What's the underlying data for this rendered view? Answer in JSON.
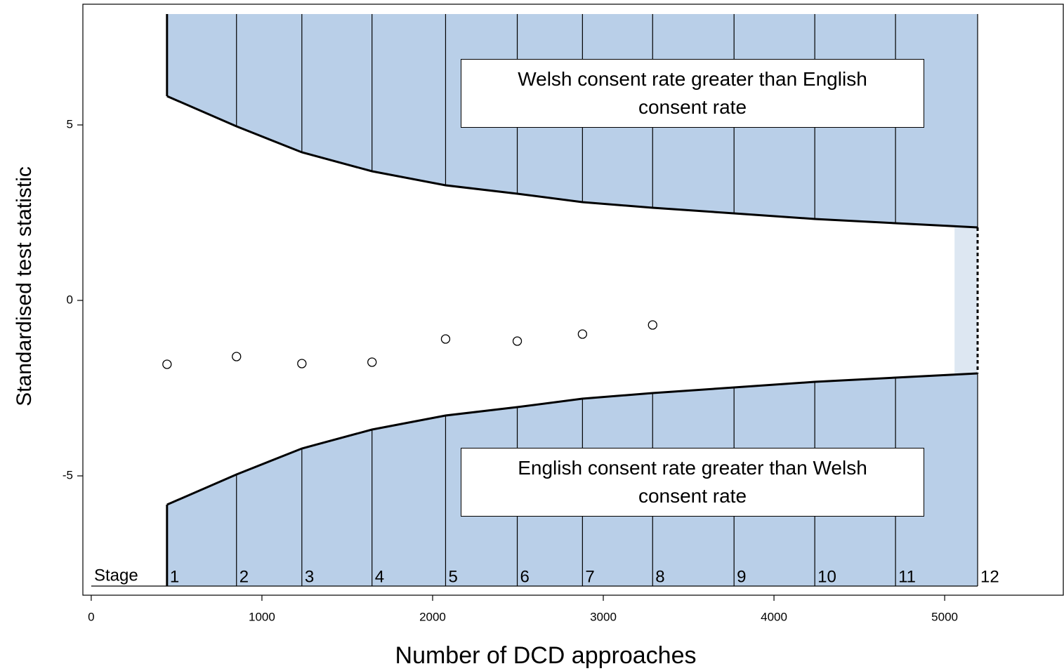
{
  "chart_data": {
    "type": "sequential",
    "x_label": "Number of DCD approaches",
    "y_label": "Standardised test statistic",
    "xlim": [
      -49,
      5695
    ],
    "ylim": [
      -8.4,
      8.44
    ],
    "xticks": [
      0,
      1000,
      2000,
      3000,
      4000,
      5000
    ],
    "yticks": [
      -5,
      0,
      5
    ],
    "stage_label": "Stage",
    "stages": [
      1,
      2,
      3,
      4,
      5,
      6,
      7,
      8,
      9,
      10,
      11,
      12
    ],
    "x": [
      444,
      851,
      1234,
      1645,
      2076,
      2496,
      2878,
      3289,
      3766,
      4239,
      4712,
      5193
    ],
    "series": [
      {
        "color": "#000000",
        "values": [
          5.82,
          4.96,
          4.22,
          3.68,
          3.28,
          3.04,
          2.8,
          2.64,
          2.48,
          2.32,
          2.2,
          2.08
        ]
      },
      {
        "color": "#000000",
        "values": [
          -5.82,
          -4.96,
          -4.22,
          -3.68,
          -3.28,
          -3.04,
          -2.8,
          -2.64,
          -2.48,
          -2.32,
          -2.2,
          -2.08
        ]
      }
    ],
    "fill_color": "#b9cfe8",
    "fill_ylim": [
      -8.14,
      8.16
    ],
    "shaded_x": [
      5058,
      5193
    ],
    "shaded_color": "#dde7f2",
    "points": {
      "x": [
        444,
        851,
        1234,
        1645,
        2076,
        2496,
        2878,
        3289
      ],
      "values": [
        -1.82,
        -1.6,
        -1.8,
        -1.76,
        -1.1,
        -1.16,
        -0.96,
        -0.7
      ]
    },
    "annotations": [
      {
        "text": "Welsh consent rate greater than English consent rate"
      },
      {
        "text": "English consent rate greater than Welsh consent rate"
      }
    ]
  }
}
